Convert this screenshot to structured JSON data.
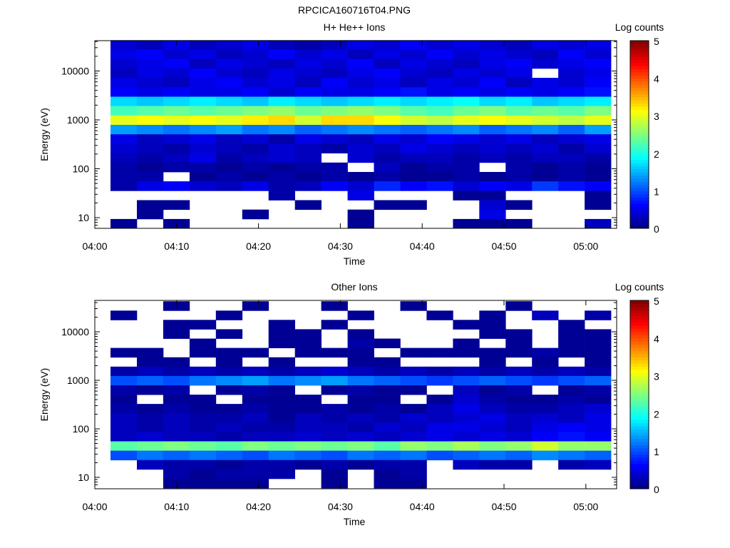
{
  "chart_data": {
    "type": "heatmap",
    "title": "RPCICA160716T04.PNG",
    "time_ticks": [
      "04:00",
      "04:10",
      "04:20",
      "04:30",
      "04:40",
      "04:50",
      "05:00"
    ],
    "time_start": "04:02",
    "time_end": "05:03",
    "energy_ticks": [
      10,
      100,
      1000,
      10000
    ],
    "energy_tick_labels": [
      "10",
      "100",
      "1000",
      "10000"
    ],
    "energy_range_log10": [
      0.78,
      4.63
    ],
    "colorbar": {
      "label": "Log counts",
      "range": [
        0,
        5
      ],
      "ticks": [
        "0",
        "1",
        "2",
        "3",
        "4",
        "5"
      ],
      "colormap": "jet"
    },
    "panels": [
      {
        "title": "H+ He++ Ions",
        "xlabel": "Time",
        "ylabel": "Energy (eV)",
        "rows_high_to_low": [
          [
            0.4,
            0.3,
            0.5,
            0.3,
            0.4,
            0.5,
            0.3,
            0.2,
            0.3,
            0.5,
            0.4,
            0.6,
            0.4,
            0.5,
            0.4,
            0.3,
            0.5,
            0.4,
            0.5
          ],
          [
            0.5,
            0.6,
            0.4,
            0.5,
            0.3,
            0.4,
            0.6,
            0.4,
            0.5,
            0.3,
            0.5,
            0.4,
            0.6,
            0.4,
            0.5,
            0.4,
            0.3,
            0.6,
            0.4
          ],
          [
            0.4,
            0.5,
            0.6,
            0.3,
            0.5,
            0.4,
            0.3,
            0.5,
            0.4,
            0.6,
            0.3,
            0.5,
            0.4,
            0.3,
            0.5,
            0.6,
            0.4,
            0.5,
            0.6
          ],
          [
            0.3,
            0.5,
            0.4,
            0.6,
            0.4,
            0.3,
            0.5,
            0.4,
            0.3,
            0.5,
            0.6,
            0.4,
            0.3,
            0.5,
            0.4,
            0.5,
            null,
            0.4,
            0.5
          ],
          [
            0.5,
            0.4,
            0.3,
            0.5,
            0.6,
            0.4,
            0.5,
            0.3,
            0.6,
            0.4,
            0.5,
            0.3,
            0.5,
            0.4,
            0.6,
            0.3,
            0.5,
            0.4,
            0.6
          ],
          [
            0.6,
            0.5,
            0.6,
            0.5,
            0.5,
            0.6,
            0.4,
            0.6,
            0.5,
            0.5,
            0.6,
            0.7,
            0.5,
            0.6,
            0.5,
            0.6,
            0.5,
            0.6,
            0.7
          ],
          [
            1.7,
            1.6,
            1.7,
            1.8,
            1.7,
            1.6,
            1.8,
            1.7,
            1.6,
            1.7,
            1.8,
            1.7,
            1.8,
            1.9,
            1.7,
            1.8,
            1.6,
            1.7,
            1.8
          ],
          [
            2.2,
            2.3,
            2.4,
            2.3,
            2.4,
            2.5,
            2.6,
            2.4,
            2.5,
            2.6,
            2.5,
            2.3,
            2.2,
            2.4,
            2.5,
            2.3,
            2.4,
            2.3,
            2.5
          ],
          [
            3.0,
            3.1,
            3.0,
            3.1,
            3.0,
            3.2,
            3.3,
            2.9,
            3.3,
            3.3,
            3.1,
            2.9,
            2.8,
            3.0,
            3.1,
            3.0,
            2.9,
            2.8,
            3.0
          ],
          [
            1.4,
            1.3,
            1.2,
            1.3,
            1.4,
            1.2,
            1.3,
            1.1,
            1.2,
            1.3,
            1.2,
            1.1,
            1.2,
            1.3,
            1.1,
            1.2,
            1.3,
            1.1,
            1.4
          ],
          [
            0.5,
            0.3,
            0.4,
            0.5,
            0.3,
            0.4,
            0.2,
            0.5,
            0.4,
            0.3,
            0.5,
            0.4,
            0.6,
            0.5,
            0.4,
            0.5,
            0.3,
            0.4,
            0.5
          ],
          [
            0.4,
            0.3,
            0.2,
            0.4,
            0.3,
            0.2,
            0.4,
            0.3,
            0.2,
            0.4,
            0.3,
            0.5,
            0.4,
            0.3,
            0.4,
            0.3,
            0.4,
            0.2,
            0.4
          ],
          [
            0.3,
            0.2,
            0.3,
            0.5,
            0.2,
            0.3,
            0.4,
            0.3,
            null,
            0.4,
            0.2,
            0.3,
            0.3,
            0.2,
            0.3,
            0.2,
            0.3,
            0.3,
            0.2
          ],
          [
            0.2,
            0.1,
            0.2,
            0.2,
            0.1,
            0.2,
            0.1,
            0.2,
            0.2,
            null,
            0.3,
            0.1,
            0.2,
            0.2,
            null,
            0.2,
            0.1,
            0.2,
            0.1
          ],
          [
            0.2,
            0.2,
            null,
            0.1,
            0.2,
            0.1,
            0.2,
            0.1,
            0.2,
            0.1,
            0.2,
            0.1,
            0.1,
            0.2,
            0.1,
            0.2,
            0.1,
            0.2,
            0.1
          ],
          [
            0.2,
            0.5,
            0.6,
            0.4,
            0.3,
            0.5,
            0.2,
            0.3,
            0.6,
            0.4,
            0.8,
            0.6,
            0.7,
            0.4,
            0.6,
            0.5,
            0.9,
            0.7,
            0.6
          ],
          [
            null,
            null,
            null,
            null,
            null,
            null,
            0.2,
            null,
            null,
            0.5,
            null,
            null,
            null,
            0.1,
            0.1,
            null,
            null,
            null,
            0.1
          ],
          [
            null,
            0.1,
            0.1,
            null,
            null,
            null,
            null,
            0.1,
            null,
            null,
            0.1,
            0.1,
            null,
            null,
            0.4,
            0.1,
            null,
            null,
            0.1
          ],
          [
            null,
            0.1,
            null,
            null,
            null,
            0.1,
            null,
            null,
            null,
            0.1,
            null,
            null,
            null,
            null,
            0.5,
            null,
            null,
            null,
            null
          ],
          [
            0.1,
            null,
            0.1,
            null,
            null,
            null,
            null,
            null,
            null,
            0.1,
            null,
            null,
            null,
            0.1,
            0.1,
            0.1,
            null,
            null,
            0.3
          ]
        ]
      },
      {
        "title": "Other Ions",
        "xlabel": "Time",
        "ylabel": "Energy (eV)",
        "rows_high_to_low": [
          [
            null,
            null,
            0.1,
            null,
            null,
            0.1,
            null,
            null,
            0.1,
            null,
            null,
            0.1,
            null,
            null,
            null,
            0.1,
            null,
            null,
            null
          ],
          [
            0.1,
            null,
            null,
            null,
            0.1,
            null,
            null,
            null,
            null,
            0.1,
            null,
            null,
            0.1,
            null,
            0.1,
            null,
            0.3,
            null,
            0.2
          ],
          [
            null,
            null,
            0.1,
            0.1,
            null,
            null,
            0.1,
            null,
            0.1,
            null,
            null,
            null,
            null,
            0.1,
            0.1,
            null,
            null,
            0.1,
            null
          ],
          [
            null,
            null,
            0.1,
            null,
            0.1,
            null,
            0.1,
            0.1,
            null,
            0.1,
            null,
            null,
            null,
            null,
            0.1,
            0.1,
            null,
            0.1,
            0.1
          ],
          [
            null,
            null,
            null,
            0.1,
            null,
            null,
            0.1,
            0.1,
            null,
            0.2,
            0.1,
            null,
            null,
            0.1,
            null,
            0.1,
            null,
            0.1,
            0.1
          ],
          [
            0.1,
            0.1,
            null,
            0.1,
            0.1,
            0.1,
            null,
            0.1,
            0.1,
            0.1,
            null,
            0.1,
            0.1,
            0.1,
            0.1,
            0.1,
            0.2,
            0.1,
            0.1
          ],
          [
            null,
            0.1,
            0.1,
            null,
            0.1,
            null,
            0.1,
            null,
            null,
            0.1,
            0.1,
            null,
            null,
            null,
            0.1,
            null,
            0.1,
            null,
            0.1
          ],
          [
            0.2,
            0.3,
            0.2,
            0.3,
            0.2,
            0.3,
            0.2,
            0.3,
            0.4,
            0.3,
            0.2,
            0.3,
            0.2,
            0.3,
            0.2,
            0.3,
            0.2,
            0.3,
            0.2
          ],
          [
            1.0,
            1.1,
            1.0,
            1.2,
            1.3,
            1.4,
            1.2,
            1.3,
            1.4,
            1.2,
            1.1,
            1.0,
            0.9,
            1.0,
            1.1,
            1.0,
            0.9,
            1.0,
            1.1
          ],
          [
            0.2,
            0.1,
            0.2,
            null,
            0.1,
            0.2,
            0.1,
            null,
            0.1,
            0.2,
            0.1,
            0.1,
            null,
            0.3,
            0.1,
            0.2,
            null,
            0.1,
            0.2
          ],
          [
            0.1,
            null,
            0.1,
            0.1,
            null,
            0.1,
            0.1,
            0.1,
            null,
            0.1,
            0.1,
            null,
            0.1,
            0.4,
            0.2,
            0.1,
            0.1,
            0.2,
            0.1
          ],
          [
            0.2,
            0.1,
            0.2,
            0.1,
            0.1,
            0.2,
            0.1,
            0.1,
            0.2,
            0.1,
            0.2,
            0.1,
            0.3,
            0.5,
            0.3,
            0.2,
            0.2,
            0.3,
            0.4
          ],
          [
            0.3,
            0.2,
            0.3,
            0.2,
            0.2,
            0.3,
            0.1,
            0.3,
            0.2,
            0.3,
            0.2,
            0.4,
            0.3,
            0.4,
            0.5,
            0.3,
            0.4,
            0.3,
            0.5
          ],
          [
            0.3,
            0.2,
            0.3,
            0.2,
            0.3,
            0.2,
            0.2,
            0.3,
            0.3,
            0.2,
            0.4,
            0.3,
            0.5,
            0.5,
            0.4,
            0.3,
            0.5,
            0.6,
            0.5
          ],
          [
            0.3,
            0.4,
            0.3,
            0.3,
            0.2,
            0.3,
            0.3,
            0.4,
            0.3,
            0.4,
            0.3,
            0.4,
            0.5,
            0.4,
            0.5,
            0.4,
            0.6,
            0.7,
            0.6
          ],
          [
            2.3,
            2.4,
            2.5,
            2.4,
            2.3,
            2.5,
            2.4,
            2.5,
            2.4,
            2.5,
            2.3,
            2.6,
            2.5,
            2.7,
            2.5,
            2.6,
            2.9,
            2.6,
            2.6
          ],
          [
            1.0,
            1.2,
            1.1,
            1.2,
            1.1,
            1.0,
            1.2,
            1.1,
            1.0,
            1.2,
            1.1,
            1.2,
            1.0,
            1.1,
            1.2,
            1.1,
            1.3,
            1.2,
            1.1
          ],
          [
            null,
            0.3,
            0.2,
            0.2,
            0.1,
            0.2,
            0.2,
            0.1,
            0.2,
            0.1,
            0.2,
            0.2,
            null,
            0.3,
            0.2,
            0.2,
            null,
            0.2,
            0.3
          ],
          [
            null,
            null,
            0.2,
            0.1,
            0.2,
            0.2,
            0.2,
            null,
            0.1,
            null,
            0.1,
            0.2,
            null,
            null,
            null,
            null,
            null,
            null,
            null
          ],
          [
            null,
            null,
            0.1,
            0.1,
            0.1,
            0.1,
            null,
            null,
            0.1,
            null,
            0.1,
            0.1,
            null,
            null,
            null,
            null,
            null,
            null,
            null
          ]
        ]
      }
    ]
  }
}
